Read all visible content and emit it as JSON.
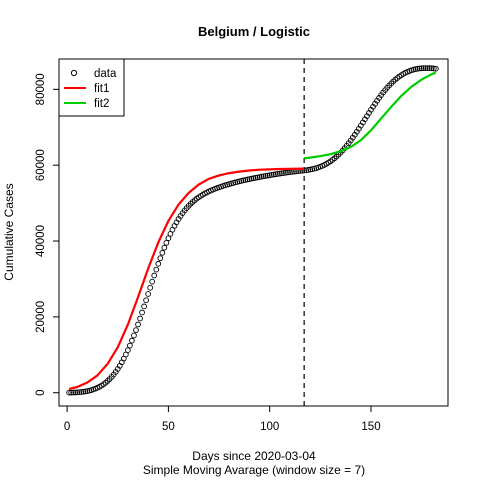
{
  "chart_data": {
    "type": "scatter",
    "title": "Belgium / Logistic",
    "xlabel": "Days since 2020-03-04",
    "xlabel_sub": "Simple Moving Avarage (window size = 7)",
    "ylabel": "Cumulative Cases",
    "xlim": [
      -4,
      188
    ],
    "ylim": [
      -3500,
      88000
    ],
    "x_ticks": [
      0,
      50,
      100,
      150
    ],
    "y_ticks": [
      0,
      20000,
      40000,
      60000,
      80000
    ],
    "y_tick_labels": [
      "0",
      "20000",
      "40000",
      "60000",
      "80000"
    ],
    "vertical_line_x": 117,
    "legend": {
      "position": "top-left",
      "entries": [
        "data",
        "fit1",
        "fit2"
      ]
    },
    "colors": {
      "data": "#000000",
      "fit1": "#ff0000",
      "fit2": "#00cd00",
      "vline": "#000000"
    },
    "series": [
      {
        "name": "data",
        "kind": "points",
        "x": [
          1,
          2,
          3,
          4,
          5,
          6,
          7,
          8,
          9,
          10,
          11,
          12,
          13,
          14,
          15,
          16,
          17,
          18,
          19,
          20,
          21,
          22,
          23,
          24,
          25,
          26,
          27,
          28,
          29,
          30,
          31,
          32,
          33,
          34,
          35,
          36,
          37,
          38,
          39,
          40,
          41,
          42,
          43,
          44,
          45,
          46,
          47,
          48,
          49,
          50,
          51,
          52,
          53,
          54,
          55,
          56,
          57,
          58,
          59,
          60,
          61,
          62,
          63,
          64,
          65,
          66,
          67,
          68,
          69,
          70,
          71,
          72,
          73,
          74,
          75,
          76,
          77,
          78,
          79,
          80,
          81,
          82,
          83,
          84,
          85,
          86,
          87,
          88,
          89,
          90,
          91,
          92,
          93,
          94,
          95,
          96,
          97,
          98,
          99,
          100,
          101,
          102,
          103,
          104,
          105,
          106,
          107,
          108,
          109,
          110,
          111,
          112,
          113,
          114,
          115,
          116,
          117,
          118,
          119,
          120,
          121,
          122,
          123,
          124,
          125,
          126,
          127,
          128,
          129,
          130,
          131,
          132,
          133,
          134,
          135,
          136,
          137,
          138,
          139,
          140,
          141,
          142,
          143,
          144,
          145,
          146,
          147,
          148,
          149,
          150,
          151,
          152,
          153,
          154,
          155,
          156,
          157,
          158,
          159,
          160,
          161,
          162,
          163,
          164,
          165,
          166,
          167,
          168,
          169,
          170,
          171,
          172,
          173,
          174,
          175,
          176,
          177,
          178,
          179,
          180,
          181,
          182
        ],
        "y": [
          24,
          36,
          53,
          78,
          109,
          148,
          199,
          263,
          343,
          441,
          559,
          702,
          874,
          1076,
          1305,
          1569,
          1880,
          2235,
          2641,
          3097,
          3606,
          4177,
          4808,
          5501,
          6260,
          7099,
          8021,
          9010,
          10080,
          11224,
          12443,
          13733,
          15097,
          16527,
          18018,
          19563,
          21146,
          22764,
          24398,
          26043,
          27679,
          29306,
          30908,
          32477,
          34003,
          35478,
          36895,
          38248,
          39533,
          40750,
          41898,
          42976,
          43985,
          44926,
          45802,
          46612,
          47362,
          48056,
          48693,
          49279,
          49816,
          50311,
          50766,
          51183,
          51568,
          51920,
          52246,
          52549,
          52827,
          53087,
          53330,
          53561,
          53776,
          53979,
          54172,
          54357,
          54534,
          54703,
          54866,
          55023,
          55174,
          55320,
          55461,
          55598,
          55731,
          55860,
          55985,
          56106,
          56224,
          56339,
          56452,
          56561,
          56668,
          56772,
          56874,
          56974,
          57072,
          57168,
          57262,
          57354,
          57444,
          57532,
          57618,
          57702,
          57784,
          57864,
          57942,
          58018,
          58092,
          58164,
          58234,
          58302,
          58368,
          58432,
          58494,
          58554,
          58612,
          58680,
          58760,
          58855,
          58966,
          59095,
          59245,
          59416,
          59612,
          59833,
          60084,
          60364,
          60677,
          61024,
          61406,
          61825,
          62282,
          62776,
          63307,
          63877,
          64484,
          65126,
          65803,
          66512,
          67251,
          68016,
          68805,
          69613,
          70436,
          71269,
          72107,
          72946,
          73781,
          74607,
          75420,
          76216,
          76991,
          77741,
          78463,
          79155,
          79814,
          80438,
          81026,
          81576,
          82089,
          82563,
          82999,
          83397,
          83757,
          84081,
          84369,
          84623,
          84844,
          85034,
          85194,
          85326,
          85431,
          85511,
          85567,
          85601,
          85614,
          85609,
          85587,
          85551,
          85502,
          85442
        ],
        "comment": "dense per-day sample; drawn as open circles"
      },
      {
        "name": "fit1",
        "kind": "line",
        "x": [
          1,
          5,
          10,
          15,
          20,
          25,
          30,
          35,
          40,
          45,
          50,
          55,
          60,
          65,
          70,
          75,
          80,
          85,
          90,
          95,
          100,
          105,
          110,
          117
        ],
        "y": [
          1000,
          1500,
          2700,
          4600,
          7600,
          12000,
          18000,
          25200,
          32700,
          39600,
          45300,
          49600,
          52700,
          54900,
          56400,
          57300,
          57900,
          58300,
          58600,
          58800,
          58900,
          59000,
          59050,
          59100
        ]
      },
      {
        "name": "fit2",
        "kind": "line",
        "x": [
          117,
          120,
          125,
          130,
          135,
          140,
          145,
          150,
          155,
          160,
          165,
          170,
          175,
          180,
          182
        ],
        "y": [
          61800,
          62000,
          62400,
          62900,
          63700,
          64800,
          66600,
          69200,
          72300,
          75400,
          78300,
          80700,
          82600,
          84000,
          84400
        ]
      }
    ]
  }
}
